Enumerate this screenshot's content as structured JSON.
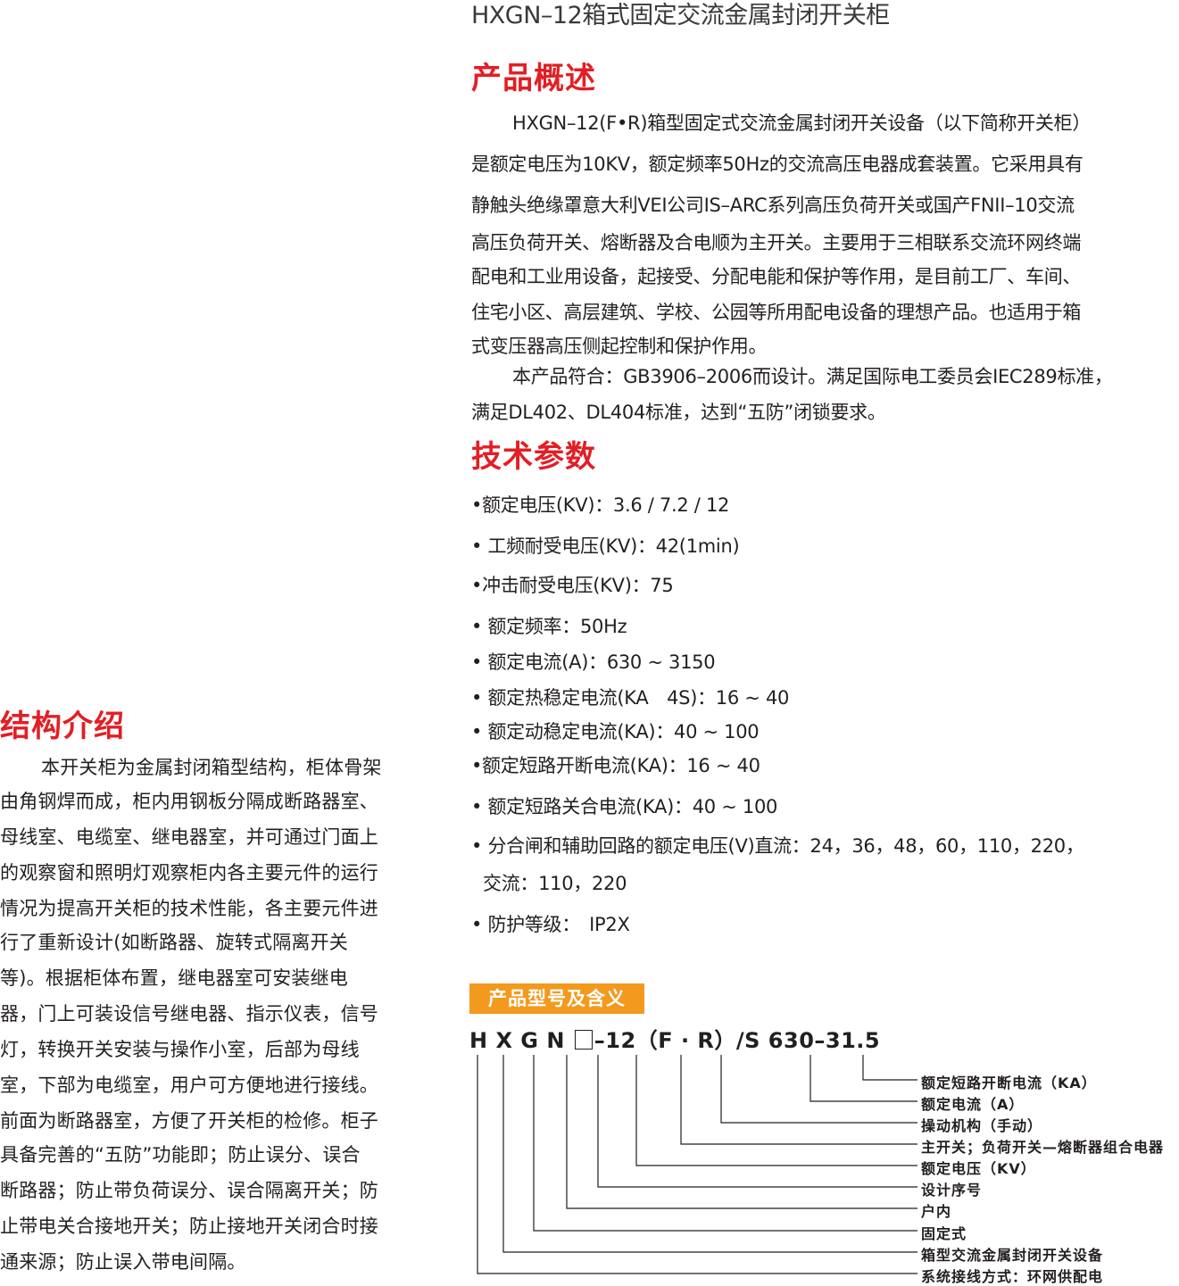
{
  "title": "HXGN–12箱式固定交流金属封闭开关柜",
  "overview": {
    "heading": "产品概述",
    "lines": [
      "HXGN–12(F•R)箱型固定式交流金属封闭开关设备（以下简称开关柜）",
      "是额定电压为10KV，额定频率50Hz的交流高压电器成套装置。它采用具有",
      "静触头绝缘罩意大利VEI公司IS–ARC系列高压负荷开关或国产FNII–10交流",
      "高压负荷开关、熔断器及合电顺为主开关。主要用于三相联系交流环网终端",
      "配电和工业用设备，起接受、分配电能和保护等作用，是目前工厂、车间、",
      "住宅小区、高层建筑、学校、公园等所用配电设备的理想产品。也适用于箱",
      "式变压器高压侧起控制和保护作用。",
      "本产品符合：GB3906–2006而设计。满足国际电工委员会IEC289标准，",
      "满足DL402、DL404标准，达到“五防”闭锁要求。"
    ]
  },
  "tech": {
    "heading": "技术参数",
    "items": [
      "•额定电压(KV)：3.6 / 7.2 / 12",
      "• 工频耐受电压(KV)：42(1min)",
      "•冲击耐受电压(KV)：75",
      "• 额定频率：50Hz",
      "• 额定电流(A)：630 ~ 3150",
      "• 额定热稳定电流(KA　4S)：16 ~ 40",
      "• 额定动稳定电流(KA)：40 ~ 100",
      "•额定短路开断电流(KA)：16 ~ 40",
      "• 额定短路关合电流(KA)：40 ~ 100",
      "• 分合闸和辅助回路的额定电压(V)直流：24，36，48，60，110，220，",
      "交流：110，220",
      "• 防护等级：　IP2X"
    ]
  },
  "structure": {
    "heading": "结构介绍",
    "lines": [
      "本开关柜为金属封闭箱型结构，柜体骨架",
      "由角钢焊而成，柜内用钢板分隔成断路器室、",
      "母线室、电缆室、继电器室，并可通过门面上",
      "的观察窗和照明灯观察柜内各主要元件的运行",
      "情况为提高开关柜的技术性能，各主要元件进",
      "行了重新设计(如断路器、旋转式隔离开关",
      "等)。根据柜体布置，继电器室可安装继电",
      "器，门上可装设信号继电器、指示仪表，信号",
      "灯，转换开关安装与操作小室，后部为母线",
      "室，下部为电缆室，用户可方便地进行接线。",
      "前面为断路器室，方便了开关柜的检修。柜子",
      "具备完善的“五防”功能即；防止误分、误合",
      "断路器；防止带负荷误分、误合隔离开关；防",
      "止带电关合接地开关；防止接地开关闭合时接",
      "通来源；防止误入带电间隔。"
    ]
  },
  "model": {
    "badge": "产品型号及含义",
    "code_prefix": "H X G N ",
    "code_suffix": "–12（F · R）/S  630–31.5",
    "legend": [
      "额定短路开断电流（KA）",
      "额定电流（A）",
      "操动机构（手动）",
      "主开关；负荷开关—熔断器组合电器",
      "额定电压（KV）",
      "设计序号",
      "户内",
      "固定式",
      "箱型交流金属封闭开关设备",
      "系统接线方式：环网供配电"
    ]
  },
  "colors": {
    "heading_red": "#e31e24",
    "badge_orange": "#f39a1e",
    "text": "#231f20"
  }
}
